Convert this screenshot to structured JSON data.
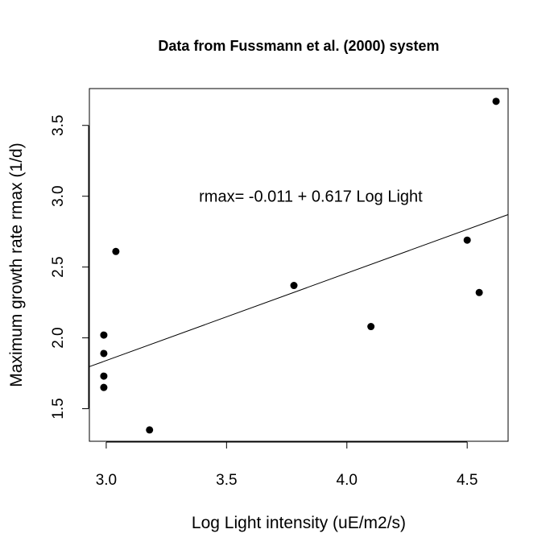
{
  "chart_data": {
    "type": "scatter",
    "title": "Data from Fussmann et al. (2000) system",
    "xlabel": "Log Light intensity (uE/m2/s)",
    "ylabel": "Maximum growth rate rmax (1/d)",
    "xlim": [
      2.93,
      4.67
    ],
    "ylim": [
      1.27,
      3.76
    ],
    "xticks": [
      3.0,
      3.5,
      4.0,
      4.5
    ],
    "yticks": [
      1.5,
      2.0,
      2.5,
      3.0,
      3.5
    ],
    "xtick_labels": [
      "3.0",
      "3.5",
      "4.0",
      "4.5"
    ],
    "ytick_labels": [
      "1.5",
      "2.0",
      "2.5",
      "3.0",
      "3.5"
    ],
    "grid": false,
    "points": [
      {
        "x": 2.99,
        "y": 2.02
      },
      {
        "x": 2.99,
        "y": 1.89
      },
      {
        "x": 2.99,
        "y": 1.73
      },
      {
        "x": 2.99,
        "y": 1.65
      },
      {
        "x": 3.04,
        "y": 2.61
      },
      {
        "x": 3.18,
        "y": 1.35
      },
      {
        "x": 3.78,
        "y": 2.37
      },
      {
        "x": 4.1,
        "y": 2.08
      },
      {
        "x": 4.5,
        "y": 2.69
      },
      {
        "x": 4.55,
        "y": 2.32
      },
      {
        "x": 4.62,
        "y": 3.67
      }
    ],
    "fit_line": {
      "intercept": -0.011,
      "slope": 0.617
    },
    "annotation": {
      "text": "rmax= -0.011 + 0.617 Log Light",
      "x": 3.85,
      "y": 3.0
    }
  }
}
